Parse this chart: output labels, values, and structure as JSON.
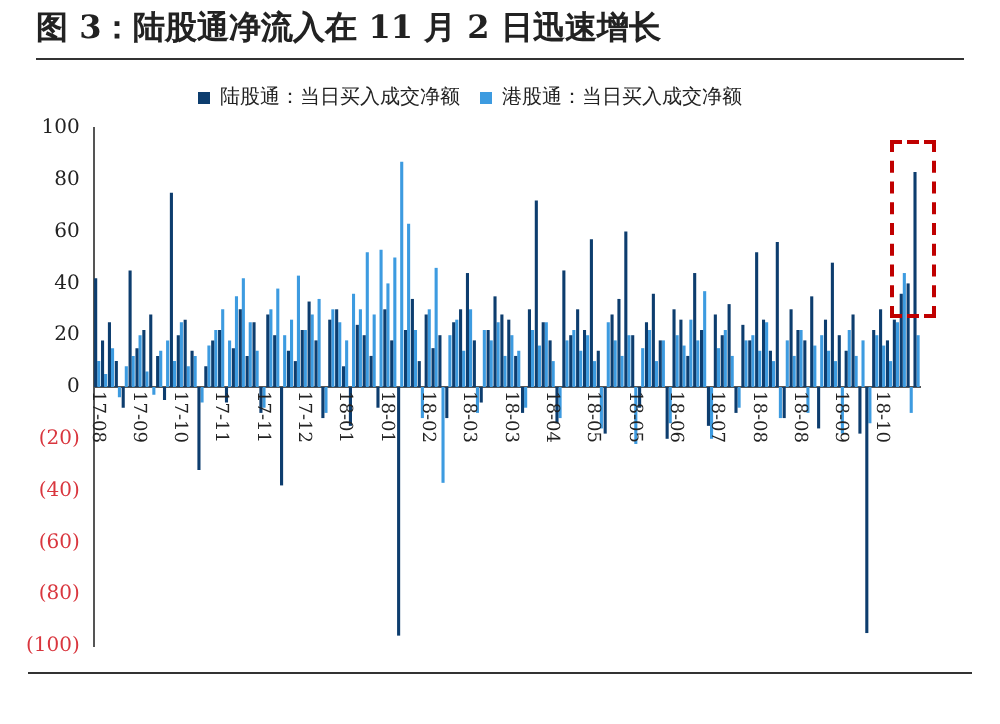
{
  "chart_data": {
    "type": "bar",
    "title": "图 3：陆股通净流入在 11 月 2 日迅速增长",
    "categories": [
      "17-08",
      null,
      null,
      null,
      null,
      null,
      "17-09",
      null,
      null,
      null,
      null,
      null,
      "17-10",
      null,
      null,
      null,
      null,
      null,
      "17-11",
      null,
      null,
      null,
      null,
      null,
      "17-11",
      null,
      null,
      null,
      null,
      null,
      "17-12",
      null,
      null,
      null,
      null,
      null,
      "18-01",
      null,
      null,
      null,
      null,
      null,
      "18-01",
      null,
      null,
      null,
      null,
      null,
      "18-02",
      null,
      null,
      null,
      null,
      null,
      "18-03",
      null,
      null,
      null,
      null,
      null,
      "18-03",
      null,
      null,
      null,
      null,
      null,
      "18-04",
      null,
      null,
      null,
      null,
      null,
      "18-05",
      null,
      null,
      null,
      null,
      null,
      "18-05",
      null,
      null,
      null,
      null,
      null,
      "18-06",
      null,
      null,
      null,
      null,
      null,
      "18-07",
      null,
      null,
      null,
      null,
      null,
      "18-08",
      null,
      null,
      null,
      null,
      null,
      "18-08",
      null,
      null,
      null,
      null,
      null,
      "18-09",
      null,
      null,
      null,
      null,
      null,
      "18-10",
      null,
      null,
      null,
      null,
      null
    ],
    "series": [
      {
        "name": "陆股通：当日买入成交净额",
        "color": "#0d3d6e",
        "values": [
          42,
          18,
          25,
          10,
          -8,
          45,
          15,
          22,
          28,
          12,
          -5,
          75,
          20,
          26,
          14,
          -32,
          8,
          18,
          22,
          -6,
          15,
          30,
          12,
          25,
          -10,
          28,
          20,
          -38,
          14,
          10,
          22,
          33,
          18,
          -12,
          26,
          30,
          8,
          -15,
          24,
          20,
          12,
          -8,
          30,
          18,
          -96,
          22,
          34,
          10,
          28,
          15,
          20,
          -12,
          25,
          30,
          44,
          18,
          -6,
          22,
          35,
          28,
          26,
          12,
          -10,
          30,
          72,
          25,
          18,
          -14,
          45,
          20,
          30,
          22,
          57,
          14,
          -18,
          28,
          34,
          60,
          20,
          -8,
          25,
          36,
          18,
          -20,
          30,
          26,
          12,
          44,
          22,
          -15,
          28,
          20,
          32,
          -10,
          24,
          18,
          52,
          26,
          14,
          56,
          -12,
          30,
          22,
          18,
          35,
          -16,
          26,
          48,
          20,
          14,
          28,
          -18,
          -95,
          22,
          30,
          18,
          26,
          36,
          40,
          83
        ]
      },
      {
        "name": "港股通：当日买入成交净额",
        "color": "#3d9be0",
        "values": [
          10,
          5,
          15,
          -4,
          8,
          12,
          20,
          6,
          -3,
          14,
          18,
          10,
          25,
          8,
          12,
          -6,
          16,
          22,
          30,
          18,
          35,
          42,
          25,
          14,
          -8,
          30,
          38,
          20,
          26,
          43,
          22,
          28,
          34,
          -10,
          30,
          25,
          18,
          36,
          30,
          52,
          28,
          53,
          40,
          50,
          87,
          63,
          22,
          -12,
          30,
          46,
          -37,
          20,
          26,
          14,
          30,
          -10,
          22,
          18,
          25,
          12,
          20,
          14,
          -8,
          22,
          16,
          25,
          10,
          -12,
          18,
          22,
          14,
          20,
          10,
          -16,
          25,
          18,
          12,
          20,
          -22,
          15,
          22,
          10,
          18,
          -14,
          20,
          16,
          26,
          18,
          37,
          -20,
          15,
          22,
          12,
          -8,
          18,
          20,
          14,
          25,
          10,
          -12,
          18,
          12,
          22,
          -10,
          16,
          20,
          14,
          10,
          -18,
          22,
          12,
          18,
          -14,
          20,
          16,
          10,
          25,
          44,
          -10,
          20
        ]
      }
    ],
    "ylim": [
      -100,
      100
    ],
    "yticks": [
      {
        "value": -100,
        "label": "(100)"
      },
      {
        "value": -80,
        "label": "(80)"
      },
      {
        "value": -60,
        "label": "(60)"
      },
      {
        "value": -40,
        "label": "(40)"
      },
      {
        "value": -20,
        "label": "(20)"
      },
      0,
      20,
      40,
      60,
      80,
      100
    ],
    "grid": false,
    "legend": "top"
  }
}
